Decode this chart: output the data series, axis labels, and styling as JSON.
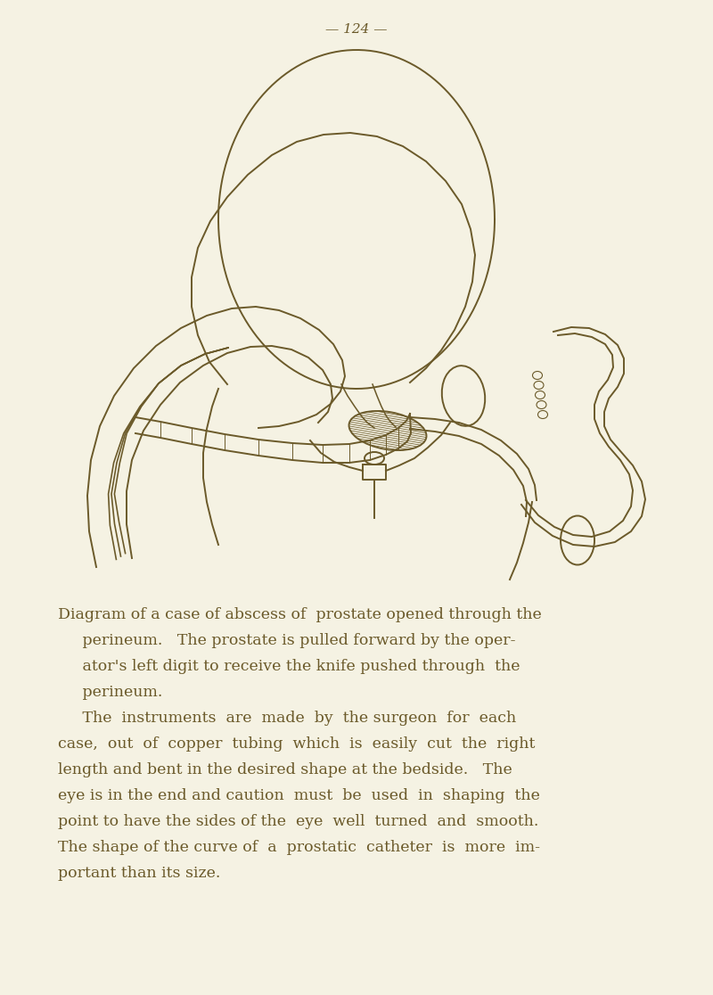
{
  "background_color": "#f5f2e3",
  "line_color": "#6b5a2a",
  "page_number": "— 124 —",
  "page_num_fontsize": 11,
  "caption_lines": [
    "Diagram of a case of abscess of  prostate opened through the",
    "     perineum.   The prostate is pulled forward by the oper-",
    "     ator's left digit to receive the knife pushed through  the",
    "     perineum.",
    "     The  instruments  are  made  by  the surgeon  for  each",
    "case,  out  of  copper  tubing  which  is  easily  cut  the  right",
    "length and bent in the desired shape at the bedside.   The",
    "eye is in the end and caution  must  be  used  in  shaping  the",
    "point to have the sides of the  eye  well  turned  and  smooth.",
    "The shape of the curve of  a  prostatic  catheter  is  more  im-",
    "portant than its size."
  ],
  "caption_fontsize": 12.5
}
